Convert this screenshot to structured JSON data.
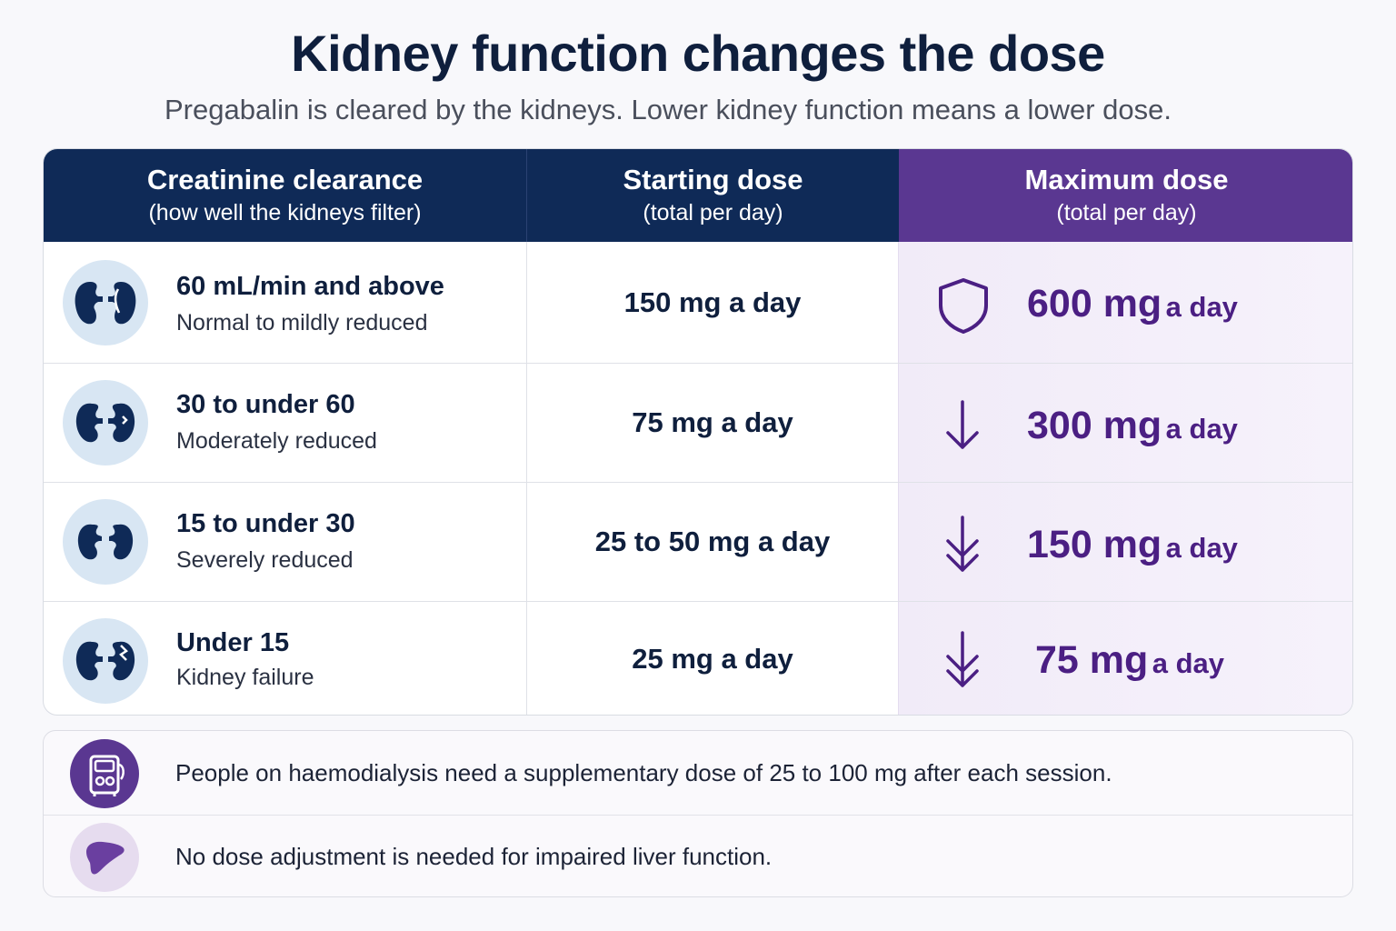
{
  "title": "Kidney function changes the dose",
  "subtitle": "Pregabalin is cleared by the kidneys. Lower kidney function means a lower dose.",
  "table": {
    "headers": [
      {
        "main": "Creatinine clearance",
        "sub": "(how well the kidneys filter)"
      },
      {
        "main": "Starting dose",
        "sub": "(total per day)"
      },
      {
        "main": "Maximum dose",
        "sub": "(total per day)"
      }
    ],
    "rows": [
      {
        "range": "60 mL/min and above",
        "description": "Normal to mildly reduced",
        "starting": "150 mg a day",
        "max_value": "600 mg",
        "max_unit": "a day",
        "icon": "shield-icon"
      },
      {
        "range": "30 to under 60",
        "description": "Moderately reduced",
        "starting": "75 mg a day",
        "max_value": "300 mg",
        "max_unit": "a day",
        "icon": "arrow-down-icon"
      },
      {
        "range": "15 to under 30",
        "description": "Severely reduced",
        "starting": "25 to 50 mg a day",
        "max_value": "150 mg",
        "max_unit": "a day",
        "icon": "double-arrow-down-icon"
      },
      {
        "range": "Under 15",
        "description": "Kidney failure",
        "starting": "25 mg a day",
        "max_value": "75 mg",
        "max_unit": "a day",
        "icon": "double-arrow-down-icon"
      }
    ]
  },
  "notes": [
    {
      "text": "People on haemodialysis need a supplementary dose of 25 to 100 mg after each session.",
      "icon": "dialysis-machine-icon"
    },
    {
      "text": "No dose adjustment is needed for impaired liver function.",
      "icon": "liver-icon"
    }
  ],
  "colors": {
    "navy": "#0f2a57",
    "purple": "#5a3791",
    "purple_text": "#4b1f83",
    "kidney_bg": "#d8e6f3"
  }
}
